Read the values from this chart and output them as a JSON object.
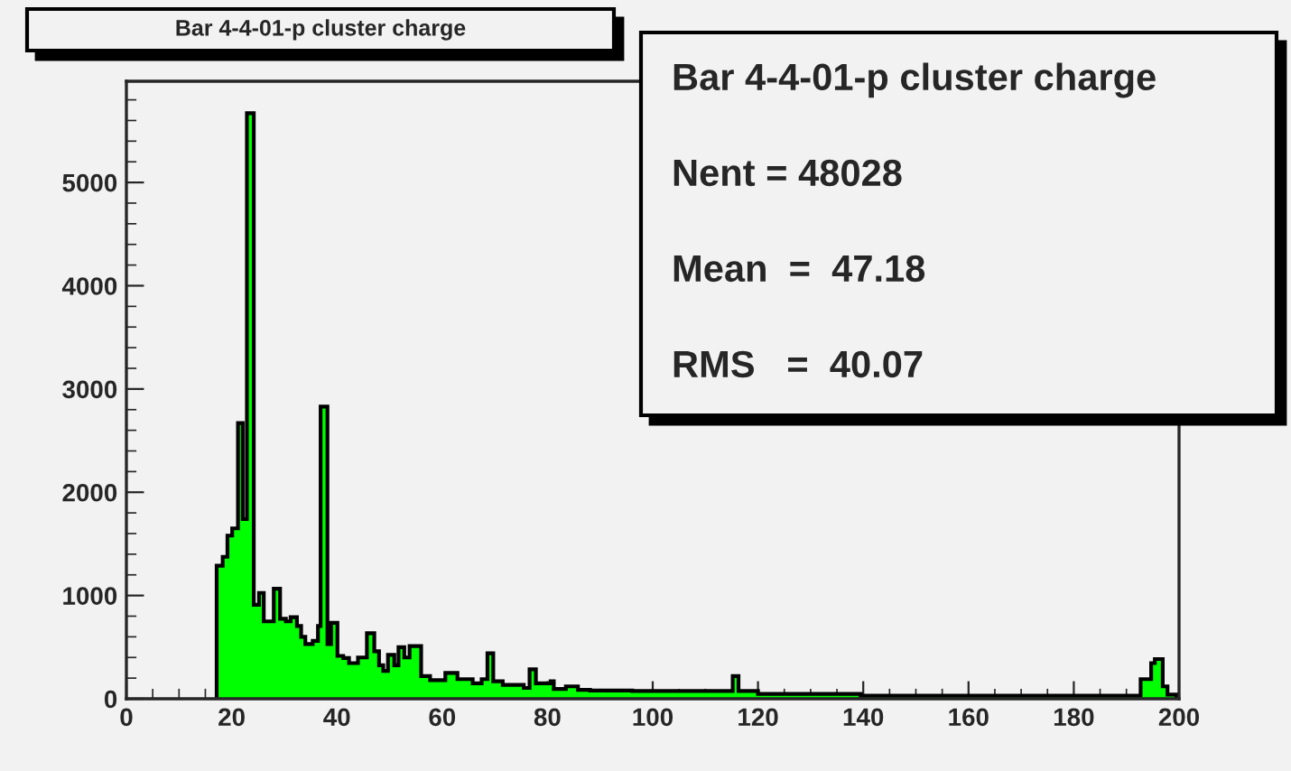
{
  "chart_data": {
    "type": "histogram",
    "title": "Bar 4-4-01-p cluster charge",
    "bins": [
      17.15,
      18.3,
      19.2,
      20.1,
      21.2,
      22.1,
      22.9,
      24.2,
      25.2,
      26.1,
      28.0,
      29.2,
      30.3,
      31.2,
      32.4,
      33.2,
      34.0,
      35.4,
      36.4,
      36.9,
      38.2,
      38.9,
      40.1,
      41.2,
      42.3,
      44.0,
      45.7,
      47.1,
      48.0,
      48.8,
      49.7,
      50.9,
      51.7,
      52.8,
      53.8,
      56.0,
      57.7,
      60.6,
      62.9,
      65.8,
      67.5,
      68.6,
      69.7,
      71.5,
      75.5,
      76.6,
      77.8,
      80.6,
      81.2,
      83.5,
      85.8,
      88.1,
      90.3,
      96.1,
      115.2,
      116.3,
      120.0,
      139.5,
      192.7,
      194.7,
      195.4,
      196.9,
      197.8,
      199.5
    ],
    "values": [
      1288,
      1375,
      1580,
      1650,
      2670,
      1740,
      5670,
      910,
      1025,
      750,
      1065,
      775,
      750,
      790,
      705,
      600,
      530,
      560,
      705,
      2830,
      530,
      735,
      415,
      395,
      345,
      400,
      635,
      460,
      325,
      270,
      425,
      325,
      500,
      400,
      510,
      220,
      180,
      250,
      190,
      150,
      190,
      440,
      170,
      135,
      105,
      285,
      150,
      170,
      95,
      120,
      87,
      80,
      80,
      75,
      220,
      75,
      47,
      30,
      190,
      345,
      385,
      120,
      40
    ],
    "color": "#00ff00",
    "xlim": [
      0,
      200
    ],
    "xticks": [
      0,
      20,
      40,
      60,
      80,
      100,
      120,
      140,
      160,
      180,
      200
    ],
    "ylim": [
      0,
      5980
    ],
    "yticks": [
      0,
      1000,
      2000,
      3000,
      4000,
      5000
    ],
    "annotations": [
      "Bar 4-4-01-p cluster charge",
      "Nent = 48028",
      "Mean  =  47.18",
      "RMS   =  40.07"
    ]
  }
}
